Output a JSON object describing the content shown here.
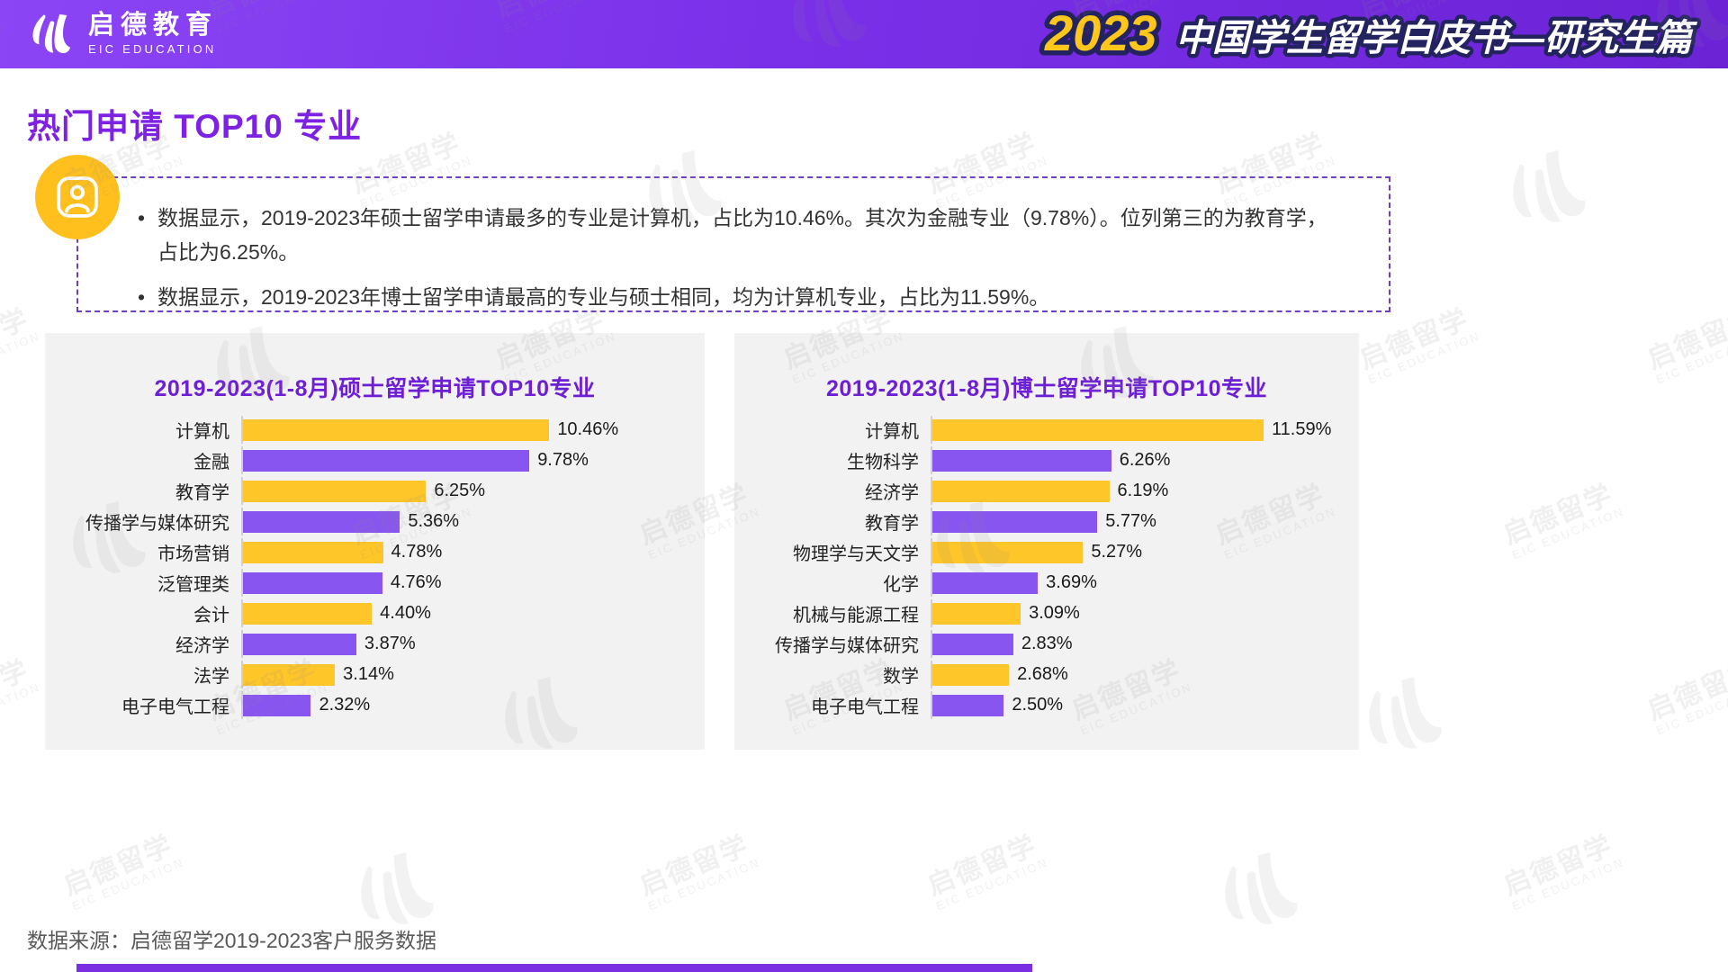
{
  "header": {
    "logo_cn": "启德教育",
    "logo_en": "EIC EDUCATION",
    "title_year": "2023",
    "title_text": "中国学生留学白皮书—研究生篇"
  },
  "page_title": "热门申请 TOP10 专业",
  "callout": {
    "bullets": [
      {
        "lines": [
          "数据显示，2019-2023年硕士留学申请最多的专业是计算机，占比为10.46%。其次为金融专业（9.78%）。位列第三的为教育学，",
          "占比为6.25%。"
        ]
      },
      {
        "lines": [
          "数据显示，2019-2023年博士留学申请最高的专业与硕士相同，均为计算机专业，占比为11.59%。"
        ]
      }
    ]
  },
  "chart_data": [
    {
      "type": "bar",
      "orientation": "horizontal",
      "title": "2019-2023(1-8月)硕士留学申请TOP10专业",
      "categories": [
        "计算机",
        "金融",
        "教育学",
        "传播学与媒体研究",
        "市场营销",
        "泛管理类",
        "会计",
        "经济学",
        "法学",
        "电子电气工程"
      ],
      "values": [
        10.46,
        9.78,
        6.25,
        5.36,
        4.78,
        4.76,
        4.4,
        3.87,
        3.14,
        2.32
      ],
      "labels": [
        "10.46%",
        "9.78%",
        "6.25%",
        "5.36%",
        "4.78%",
        "4.76%",
        "4.40%",
        "3.87%",
        "3.14%",
        "2.32%"
      ],
      "legend": "none",
      "grid": "off",
      "bar_color_pattern": [
        "yellow",
        "purple"
      ]
    },
    {
      "type": "bar",
      "orientation": "horizontal",
      "title": "2019-2023(1-8月)博士留学申请TOP10专业",
      "categories": [
        "计算机",
        "生物科学",
        "经济学",
        "教育学",
        "物理学与天文学",
        "化学",
        "机械与能源工程",
        "传播学与媒体研究",
        "数学",
        "电子电气工程"
      ],
      "values": [
        11.59,
        6.26,
        6.19,
        5.77,
        5.27,
        3.69,
        3.09,
        2.83,
        2.68,
        2.5
      ],
      "labels": [
        "11.59%",
        "6.26%",
        "6.19%",
        "5.77%",
        "5.27%",
        "3.69%",
        "3.09%",
        "2.83%",
        "2.68%",
        "2.50%"
      ],
      "legend": "none",
      "grid": "off",
      "bar_color_pattern": [
        "yellow",
        "purple"
      ]
    }
  ],
  "source_note": "数据来源：启德留学2019-2023客户服务数据",
  "watermark": {
    "line1": "启德留学",
    "line2": "EIC EDUCATION"
  },
  "colors": {
    "header_purple": "#7A30E8",
    "accent_purple": "#7D22E3",
    "chart_title_purple": "#6D1FD6",
    "bar_yellow": "#FFC629",
    "bar_purple": "#8955F0",
    "panel_bg": "#F2F2F2",
    "title_year_yellow": "#FFC61B",
    "outline_navy": "#23235F",
    "icon_circle_yellow": "#FFC01E"
  }
}
